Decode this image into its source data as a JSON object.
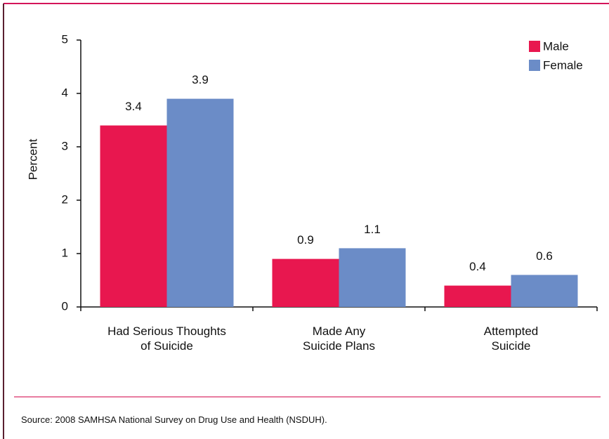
{
  "chart_data": {
    "type": "bar",
    "categories": [
      "Had Serious Thoughts\nof Suicide",
      "Made Any\nSuicide Plans",
      "Attempted\nSuicide"
    ],
    "series": [
      {
        "name": "Male",
        "color": "#e8174f",
        "values": [
          3.4,
          0.9,
          0.4
        ]
      },
      {
        "name": "Female",
        "color": "#6b8cc7",
        "values": [
          3.9,
          1.1,
          0.6
        ]
      }
    ],
    "ylabel": "Percent",
    "ylim": [
      0,
      5
    ],
    "yticks": [
      0,
      1,
      2,
      3,
      4,
      5
    ],
    "legend": "top-right",
    "source": "Source: 2008 SAMHSA National Survey on Drug Use and Health (NSDUH)."
  }
}
